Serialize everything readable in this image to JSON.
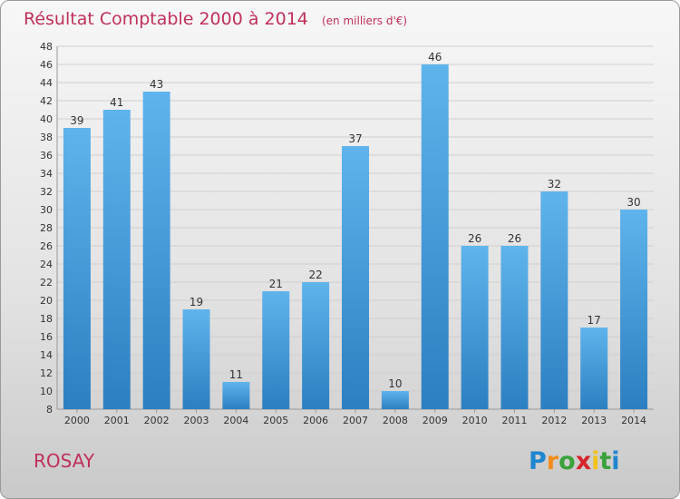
{
  "chart_data": {
    "type": "bar",
    "title": "Résultat Comptable 2000 à 2014",
    "subtitle": "(en milliers d'€)",
    "categories": [
      "2000",
      "2001",
      "2002",
      "2003",
      "2004",
      "2005",
      "2006",
      "2007",
      "2008",
      "2009",
      "2010",
      "2011",
      "2012",
      "2013",
      "2014"
    ],
    "values": [
      39,
      41,
      43,
      19,
      11,
      21,
      22,
      37,
      10,
      46,
      26,
      26,
      32,
      17,
      30
    ],
    "ylim": [
      8,
      48
    ],
    "ytick_step": 2,
    "grid": true,
    "xlabel": "",
    "ylabel": ""
  },
  "place_name": "ROSAY",
  "logo": {
    "text": "Proxiti",
    "letters": [
      "P",
      "r",
      "o",
      "x",
      "i",
      "t",
      "i"
    ],
    "letter_colors": [
      "#1f86d0",
      "#f28c1e",
      "#3aa23a",
      "#d6262a",
      "#f2c21a",
      "#3aa23a",
      "#1f86d0"
    ]
  },
  "colors": {
    "bar_light": "#5fb4ec",
    "bar_dark": "#2c7fc1",
    "accent": "#c0305a"
  }
}
